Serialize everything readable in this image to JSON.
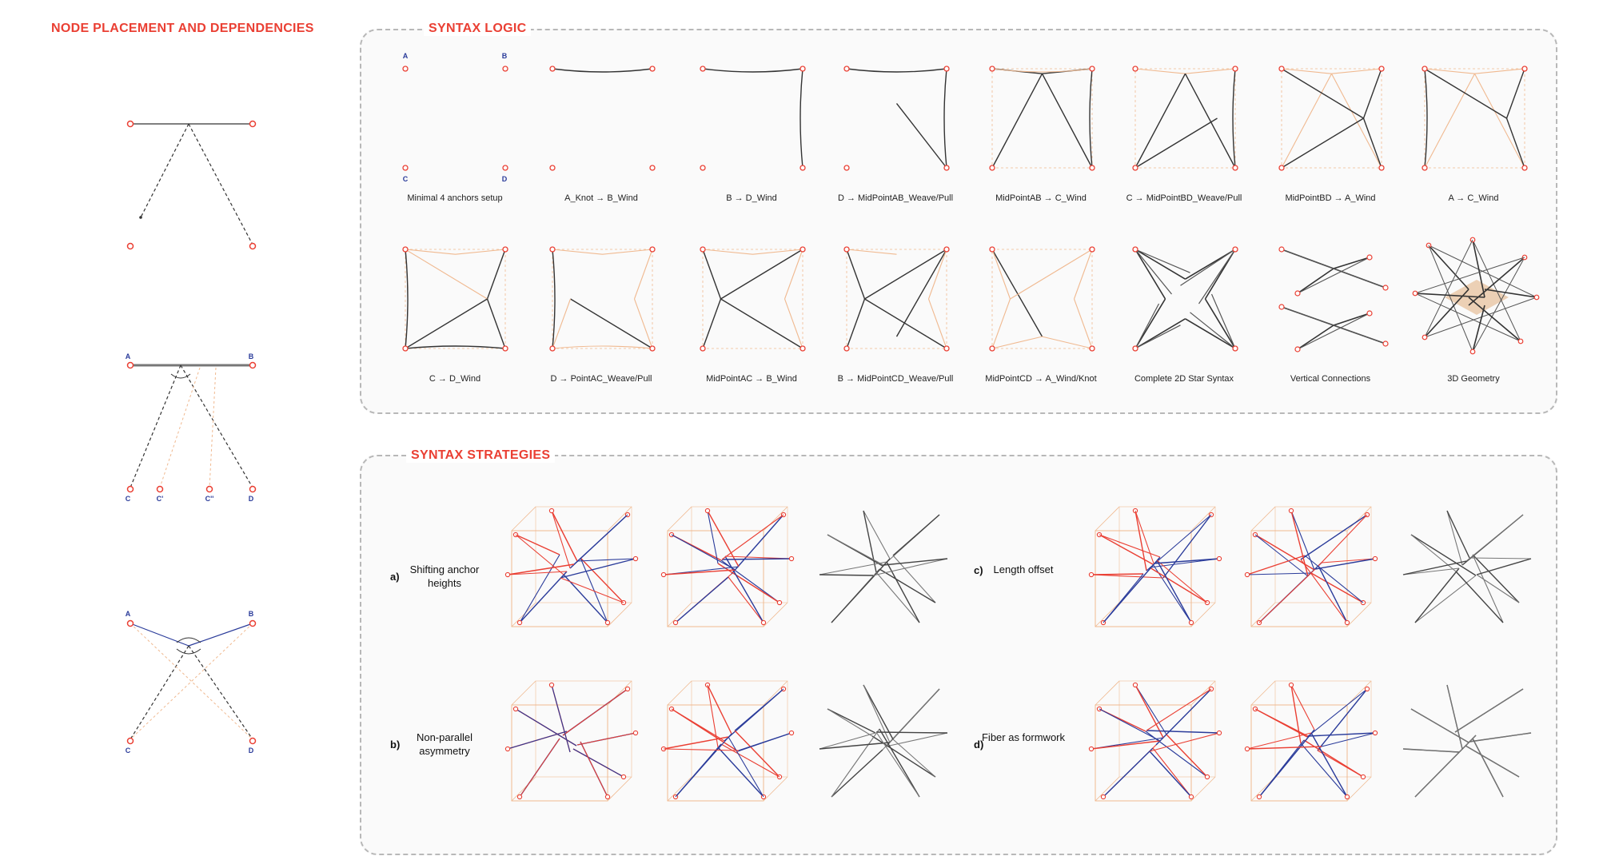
{
  "sections": {
    "node_placement_title": "NODE PLACEMENT AND DEPENDENCIES",
    "syntax_logic_title": "SYNTAX LOGIC",
    "syntax_strategies_title": "SYNTAX STRATEGIES"
  },
  "node_labels": {
    "top_left": "A",
    "top_right": "B",
    "bottom_left": "C",
    "bottom_right": "D",
    "c_prime": "C'",
    "c_double_prime": "C''"
  },
  "syntax_logic": {
    "row1": [
      "Minimal 4 anchors setup",
      "A_Knot → B_Wind",
      "B → D_Wind",
      "D → MidPointAB_Weave/Pull",
      "MidPointAB → C_Wind",
      "C → MidPointBD_Weave/Pull",
      "MidPointBD → A_Wind",
      "A → C_Wind"
    ],
    "row2": [
      "C → D_Wind",
      "D → PointAC_Weave/Pull",
      "MidPointAC → B_Wind",
      "B → MidPointCD_Weave/Pull",
      "MidPointCD → A_Wind/Knot",
      "Complete 2D Star Syntax",
      "Vertical Connections",
      "3D Geometry"
    ]
  },
  "strategies": [
    {
      "letter": "a)",
      "label": "Shifting anchor heights"
    },
    {
      "letter": "b)",
      "label": "Non-parallel asymmetry"
    },
    {
      "letter": "c)",
      "label": "Length offset"
    },
    {
      "letter": "d)",
      "label": "Fiber as formwork"
    }
  ],
  "colors": {
    "accent_red": "#ea3f33",
    "node_blue": "#2a3b9a",
    "dark_line": "#3a3a3a",
    "light_orange": "#f0b990",
    "panel_border": "#b8b8b8"
  }
}
